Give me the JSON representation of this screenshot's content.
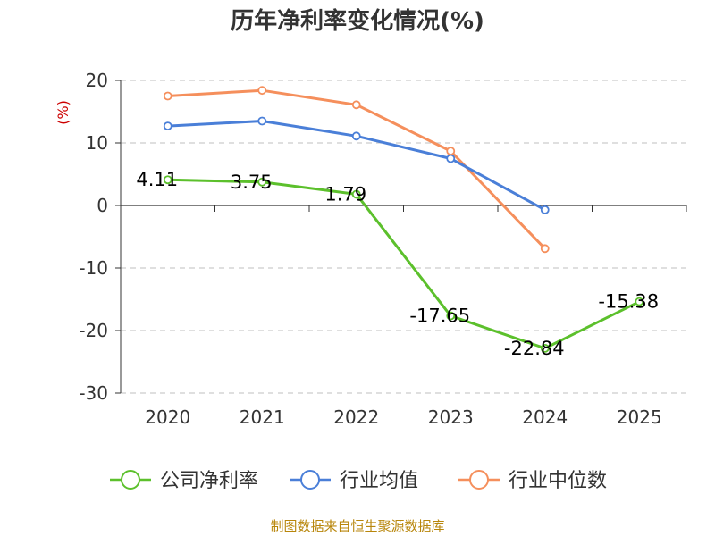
{
  "chart_data": {
    "type": "line",
    "title": "历年净利率变化情况(%)",
    "ylabel": "(%)",
    "xlabel": "",
    "categories": [
      "2020",
      "2021",
      "2022",
      "2023",
      "2024",
      "2025"
    ],
    "ylim": [
      -30,
      20
    ],
    "yticks": [
      "20",
      "10",
      "0",
      "-10",
      "-20",
      "-30"
    ],
    "grid": true,
    "legend_position": "bottom",
    "series": [
      {
        "name": "公司净利率",
        "color": "#5cc02c",
        "values": [
          4.11,
          3.75,
          1.79,
          -17.65,
          -22.84,
          -15.38
        ],
        "labels": [
          "4.11",
          "3.75",
          "1.79",
          "-17.65",
          "-22.84",
          "-15.38"
        ]
      },
      {
        "name": "行业均值",
        "color": "#4a7fd8",
        "values": [
          12.7,
          13.5,
          11.1,
          7.5,
          -0.7,
          null
        ]
      },
      {
        "name": "行业中位数",
        "color": "#f58f5c",
        "values": [
          17.5,
          18.4,
          16.1,
          8.7,
          -6.9,
          null
        ]
      }
    ]
  },
  "source_text": "制图数据来自恒生聚源数据库"
}
